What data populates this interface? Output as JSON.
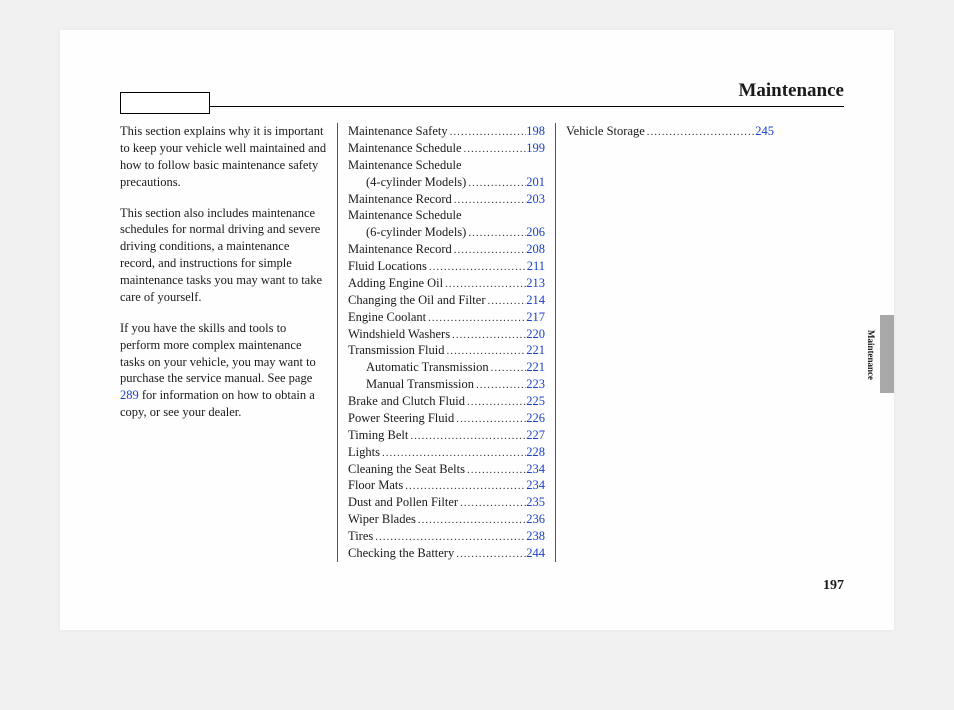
{
  "header": {
    "title": "Maintenance"
  },
  "intro": {
    "p1": "This section explains why it is important to keep your vehicle well maintained and how to follow basic maintenance safety precautions.",
    "p2": "This section also includes maintenance schedules for normal driving and severe driving conditions, a maintenance record, and instructions for simple maintenance tasks you may want to take care of yourself.",
    "p3a": "If you have the skills and tools to perform more complex maintenance tasks on your vehicle, you may want to purchase the service manual. See page ",
    "p3link": "289",
    "p3b": " for information on how to obtain a copy, or see your dealer."
  },
  "toc_col2": [
    {
      "label": "Maintenance Safety",
      "page": "198",
      "indent": false
    },
    {
      "label": "Maintenance Schedule",
      "page": "199",
      "indent": false
    },
    {
      "label": "Maintenance Schedule",
      "page": "",
      "indent": false,
      "nodots": true
    },
    {
      "label": "(4-cylinder Models)",
      "page": "201",
      "indent": true
    },
    {
      "label": "Maintenance Record",
      "page": "203",
      "indent": false
    },
    {
      "label": "Maintenance Schedule",
      "page": "",
      "indent": false,
      "nodots": true
    },
    {
      "label": "(6-cylinder Models)",
      "page": "206",
      "indent": true
    },
    {
      "label": "Maintenance Record",
      "page": "208",
      "indent": false
    },
    {
      "label": "Fluid Locations",
      "page": "211",
      "indent": false
    },
    {
      "label": "Adding Engine Oil",
      "page": "213",
      "indent": false
    },
    {
      "label": "Changing the Oil and Filter",
      "page": "214",
      "indent": false
    },
    {
      "label": "Engine Coolant",
      "page": "217",
      "indent": false
    },
    {
      "label": "Windshield Washers",
      "page": "220",
      "indent": false
    },
    {
      "label": "Transmission Fluid",
      "page": "221",
      "indent": false
    },
    {
      "label": "Automatic Transmission",
      "page": "221",
      "indent": true
    },
    {
      "label": "Manual Transmission",
      "page": "223",
      "indent": true
    },
    {
      "label": "Brake and Clutch Fluid",
      "page": "225",
      "indent": false
    },
    {
      "label": "Power Steering Fluid",
      "page": "226",
      "indent": false
    },
    {
      "label": "Timing Belt",
      "page": "227",
      "indent": false
    },
    {
      "label": "Lights",
      "page": "228",
      "indent": false
    },
    {
      "label": "Cleaning the Seat Belts",
      "page": "234",
      "indent": false
    },
    {
      "label": "Floor Mats",
      "page": "234",
      "indent": false
    },
    {
      "label": "Dust and Pollen Filter",
      "page": "235",
      "indent": false
    },
    {
      "label": "Wiper Blades",
      "page": "236",
      "indent": false
    },
    {
      "label": "Tires",
      "page": "238",
      "indent": false
    },
    {
      "label": "Checking the Battery",
      "page": "244",
      "indent": false
    }
  ],
  "toc_col3": [
    {
      "label": "Vehicle Storage",
      "page": "245",
      "indent": false
    }
  ],
  "side": {
    "label": "Maintenance"
  },
  "footer": {
    "page": "197"
  },
  "colors": {
    "link": "#1a3fc9",
    "tab": "#a8a8a8",
    "text": "#1a1a1a",
    "bg": "#f0f0f0",
    "page_bg": "#fefefe"
  }
}
